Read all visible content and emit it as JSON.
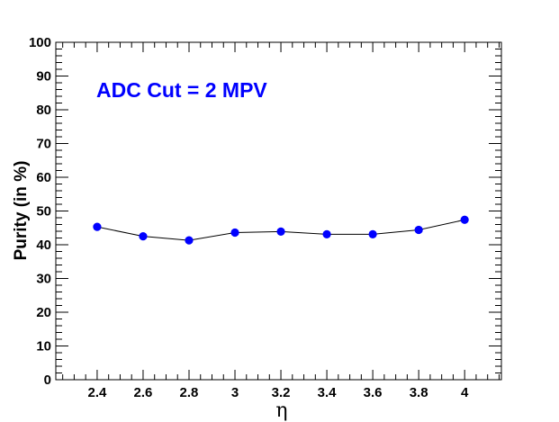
{
  "chart_data": {
    "type": "line",
    "xlabel": "η",
    "ylabel": "Purity (in %)",
    "annotation": "ADC Cut = 2 MPV",
    "xlim": [
      2.22,
      4.16
    ],
    "ylim": [
      0,
      100
    ],
    "x_ticks": [
      "2.4",
      "2.6",
      "2.8",
      "3",
      "3.2",
      "3.4",
      "3.6",
      "3.8",
      "4"
    ],
    "y_ticks": [
      "0",
      "10",
      "20",
      "30",
      "40",
      "50",
      "60",
      "70",
      "80",
      "90",
      "100"
    ],
    "grid": false,
    "series": [
      {
        "marker_color": "#0000ff",
        "line_color": "#000000",
        "points": [
          {
            "x": 2.4,
            "y": 45.3
          },
          {
            "x": 2.6,
            "y": 42.5
          },
          {
            "x": 2.8,
            "y": 41.3
          },
          {
            "x": 3.0,
            "y": 43.6
          },
          {
            "x": 3.2,
            "y": 43.9
          },
          {
            "x": 3.4,
            "y": 43.1
          },
          {
            "x": 3.6,
            "y": 43.1
          },
          {
            "x": 3.8,
            "y": 44.4
          },
          {
            "x": 4.0,
            "y": 47.4
          }
        ]
      }
    ],
    "annotation_color": "#0000ff"
  }
}
